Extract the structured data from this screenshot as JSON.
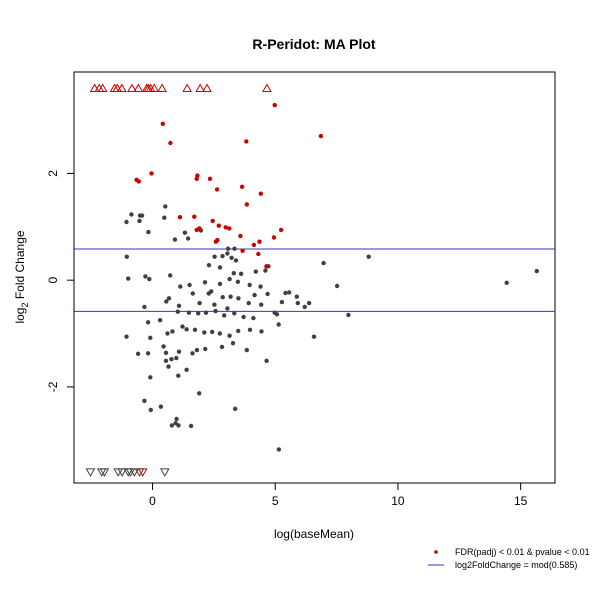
{
  "chart_data": {
    "type": "scatter",
    "title": "R-Peridot: MA Plot",
    "xlabel": "log(baseMean)",
    "ylabel_prefix": "log",
    "ylabel_sub": "2",
    "ylabel_suffix": " Fold Change",
    "xlim": [
      -3.2,
      16.4
    ],
    "ylim": [
      -3.8,
      3.9
    ],
    "xticks": [
      0,
      5,
      10,
      15
    ],
    "yticks": [
      -2,
      0,
      2
    ],
    "grid": false,
    "legend_position": "bottom-right",
    "colors": {
      "significant": "#cc0000",
      "other": "#404040",
      "threshold": "#3333cc"
    },
    "hlines": [
      0.585,
      -0.585
    ],
    "legend": [
      {
        "label": "FDR(padj) < 0.01 & pvalue < 0.01",
        "marker": "dot",
        "color": "#cc0000"
      },
      {
        "label": "log2FoldChange = mod(0.585)",
        "marker": "line",
        "color": "#3333cc"
      }
    ],
    "series": [
      {
        "name": "FDR(padj) < 0.01 & pvalue < 0.01",
        "color": "#cc0000",
        "points": [
          [
            4.98,
            3.28
          ],
          [
            6.86,
            2.7
          ],
          [
            0.42,
            2.93
          ],
          [
            0.73,
            2.57
          ],
          [
            3.82,
            2.6
          ],
          [
            -0.04,
            2.0
          ],
          [
            1.83,
            1.96
          ],
          [
            1.8,
            1.9
          ],
          [
            2.34,
            1.9
          ],
          [
            -0.65,
            1.88
          ],
          [
            -0.56,
            1.85
          ],
          [
            3.65,
            1.75
          ],
          [
            2.63,
            1.7
          ],
          [
            4.41,
            1.62
          ],
          [
            3.84,
            1.42
          ],
          [
            1.12,
            1.18
          ],
          [
            1.7,
            1.19
          ],
          [
            2.45,
            1.11
          ],
          [
            2.7,
            1.02
          ],
          [
            2.98,
            0.99
          ],
          [
            3.13,
            0.97
          ],
          [
            1.8,
            0.94
          ],
          [
            1.91,
            0.97
          ],
          [
            5.24,
            0.94
          ],
          [
            3.58,
            0.83
          ],
          [
            4.95,
            0.8
          ],
          [
            2.64,
            0.75
          ],
          [
            2.58,
            0.72
          ],
          [
            4.36,
            0.72
          ],
          [
            4.13,
            0.66
          ],
          [
            3.67,
            0.55
          ],
          [
            4.31,
            0.49
          ],
          [
            4.64,
            0.26
          ]
        ],
        "above_range_x": [
          -2.36,
          -2.17,
          -2.03,
          -1.55,
          -1.44,
          -1.25,
          -0.84,
          -0.58,
          -0.24,
          -0.17,
          -0.08,
          0.07,
          0.39,
          1.41,
          1.94,
          2.22,
          4.66
        ],
        "below_range_x": [
          -0.4
        ]
      },
      {
        "name": "other",
        "color": "#404040",
        "points": [
          [
            14.43,
            -0.05
          ],
          [
            15.66,
            0.17
          ],
          [
            8.81,
            0.44
          ],
          [
            7.52,
            -0.11
          ],
          [
            6.97,
            0.32
          ],
          [
            7.98,
            -0.65
          ],
          [
            6.58,
            -1.06
          ],
          [
            6.38,
            -0.43
          ],
          [
            5.15,
            -3.17
          ],
          [
            3.37,
            -2.41
          ],
          [
            -0.86,
            1.23
          ],
          [
            -1.06,
            1.09
          ],
          [
            -0.51,
            1.21
          ],
          [
            -0.43,
            1.21
          ],
          [
            -0.53,
            1.11
          ],
          [
            -0.17,
            0.9
          ],
          [
            0.52,
            1.38
          ],
          [
            0.48,
            1.17
          ],
          [
            0.91,
            0.76
          ],
          [
            1.32,
            0.89
          ],
          [
            1.45,
            0.78
          ],
          [
            1.97,
            0.93
          ],
          [
            3.34,
            0.59
          ],
          [
            3.08,
            0.59
          ],
          [
            2.53,
            0.44
          ],
          [
            2.85,
            0.45
          ],
          [
            3.05,
            0.5
          ],
          [
            3.22,
            0.42
          ],
          [
            3.4,
            0.37
          ],
          [
            2.3,
            0.28
          ],
          [
            2.75,
            0.24
          ],
          [
            3.31,
            0.13
          ],
          [
            3.61,
            0.12
          ],
          [
            4.21,
            0.16
          ],
          [
            4.6,
            0.18
          ],
          [
            4.72,
            0.26
          ],
          [
            6.2,
            -0.5
          ],
          [
            5.57,
            -0.23
          ],
          [
            5.88,
            -0.31
          ],
          [
            -1.05,
            0.44
          ],
          [
            -0.99,
            0.03
          ],
          [
            -0.29,
            0.07
          ],
          [
            -0.13,
            0.02
          ],
          [
            0.72,
            0.09
          ],
          [
            1.13,
            -0.12
          ],
          [
            0.67,
            -0.34
          ],
          [
            1.51,
            -0.09
          ],
          [
            2.14,
            -0.04
          ],
          [
            2.75,
            -0.07
          ],
          [
            3.14,
            0.02
          ],
          [
            3.48,
            -0.03
          ],
          [
            3.96,
            -0.09
          ],
          [
            4.4,
            -0.12
          ],
          [
            4.69,
            -0.26
          ],
          [
            5.42,
            -0.24
          ],
          [
            5.27,
            -0.41
          ],
          [
            4.43,
            -0.46
          ],
          [
            3.92,
            -0.43
          ],
          [
            3.5,
            -0.34
          ],
          [
            3.18,
            -0.31
          ],
          [
            2.86,
            -0.32
          ],
          [
            2.29,
            -0.25
          ],
          [
            1.64,
            -0.25
          ],
          [
            1.08,
            -0.48
          ],
          [
            0.56,
            -0.4
          ],
          [
            -0.33,
            -0.5
          ],
          [
            -0.18,
            -0.79
          ],
          [
            0.31,
            -0.75
          ],
          [
            1.03,
            -0.59
          ],
          [
            1.48,
            -0.61
          ],
          [
            1.86,
            -0.62
          ],
          [
            2.18,
            -0.61
          ],
          [
            2.57,
            -0.58
          ],
          [
            3.05,
            -0.53
          ],
          [
            3.33,
            -0.62
          ],
          [
            3.71,
            -0.69
          ],
          [
            4.11,
            -0.71
          ],
          [
            4.44,
            -0.96
          ],
          [
            4.98,
            -0.61
          ],
          [
            5.14,
            -0.83
          ],
          [
            3.97,
            -0.93
          ],
          [
            3.49,
            -0.95
          ],
          [
            3.14,
            -1.04
          ],
          [
            2.74,
            -1.0
          ],
          [
            2.43,
            -0.97
          ],
          [
            2.11,
            -0.98
          ],
          [
            1.73,
            -0.93
          ],
          [
            1.39,
            -0.92
          ],
          [
            1.22,
            -0.87
          ],
          [
            0.81,
            -0.96
          ],
          [
            0.61,
            -1.0
          ],
          [
            -0.09,
            -1.08
          ],
          [
            -1.06,
            -1.06
          ],
          [
            -0.59,
            -1.38
          ],
          [
            -0.18,
            -1.37
          ],
          [
            0.55,
            -1.36
          ],
          [
            0.77,
            -1.48
          ],
          [
            0.97,
            -1.46
          ],
          [
            1.08,
            -1.34
          ],
          [
            1.63,
            -1.37
          ],
          [
            1.81,
            -1.31
          ],
          [
            2.15,
            -1.29
          ],
          [
            2.83,
            -1.25
          ],
          [
            3.28,
            -1.18
          ],
          [
            3.84,
            -1.31
          ],
          [
            4.65,
            -1.51
          ],
          [
            0.55,
            -1.51
          ],
          [
            0.65,
            -1.62
          ],
          [
            1.05,
            -1.79
          ],
          [
            1.39,
            -1.68
          ],
          [
            -0.09,
            -1.82
          ],
          [
            -0.33,
            -2.26
          ],
          [
            0.34,
            -2.37
          ],
          [
            -0.07,
            -2.43
          ],
          [
            0.98,
            -2.6
          ],
          [
            0.94,
            -2.68
          ],
          [
            0.79,
            -2.72
          ],
          [
            1.06,
            -2.72
          ],
          [
            1.57,
            -2.73
          ],
          [
            1.9,
            -2.12
          ],
          [
            2.39,
            -0.21
          ],
          [
            1.92,
            -0.43
          ],
          [
            2.52,
            -0.46
          ],
          [
            2.92,
            -0.66
          ],
          [
            4.16,
            -0.28
          ],
          [
            5.92,
            -0.43
          ],
          [
            5.07,
            -0.64
          ],
          [
            0.45,
            -1.24
          ]
        ],
        "below_range_x": [
          -2.53,
          -2.07,
          -1.96,
          -1.4,
          -1.24,
          -0.99,
          -0.9,
          -0.74,
          -0.53,
          0.5
        ]
      }
    ]
  }
}
